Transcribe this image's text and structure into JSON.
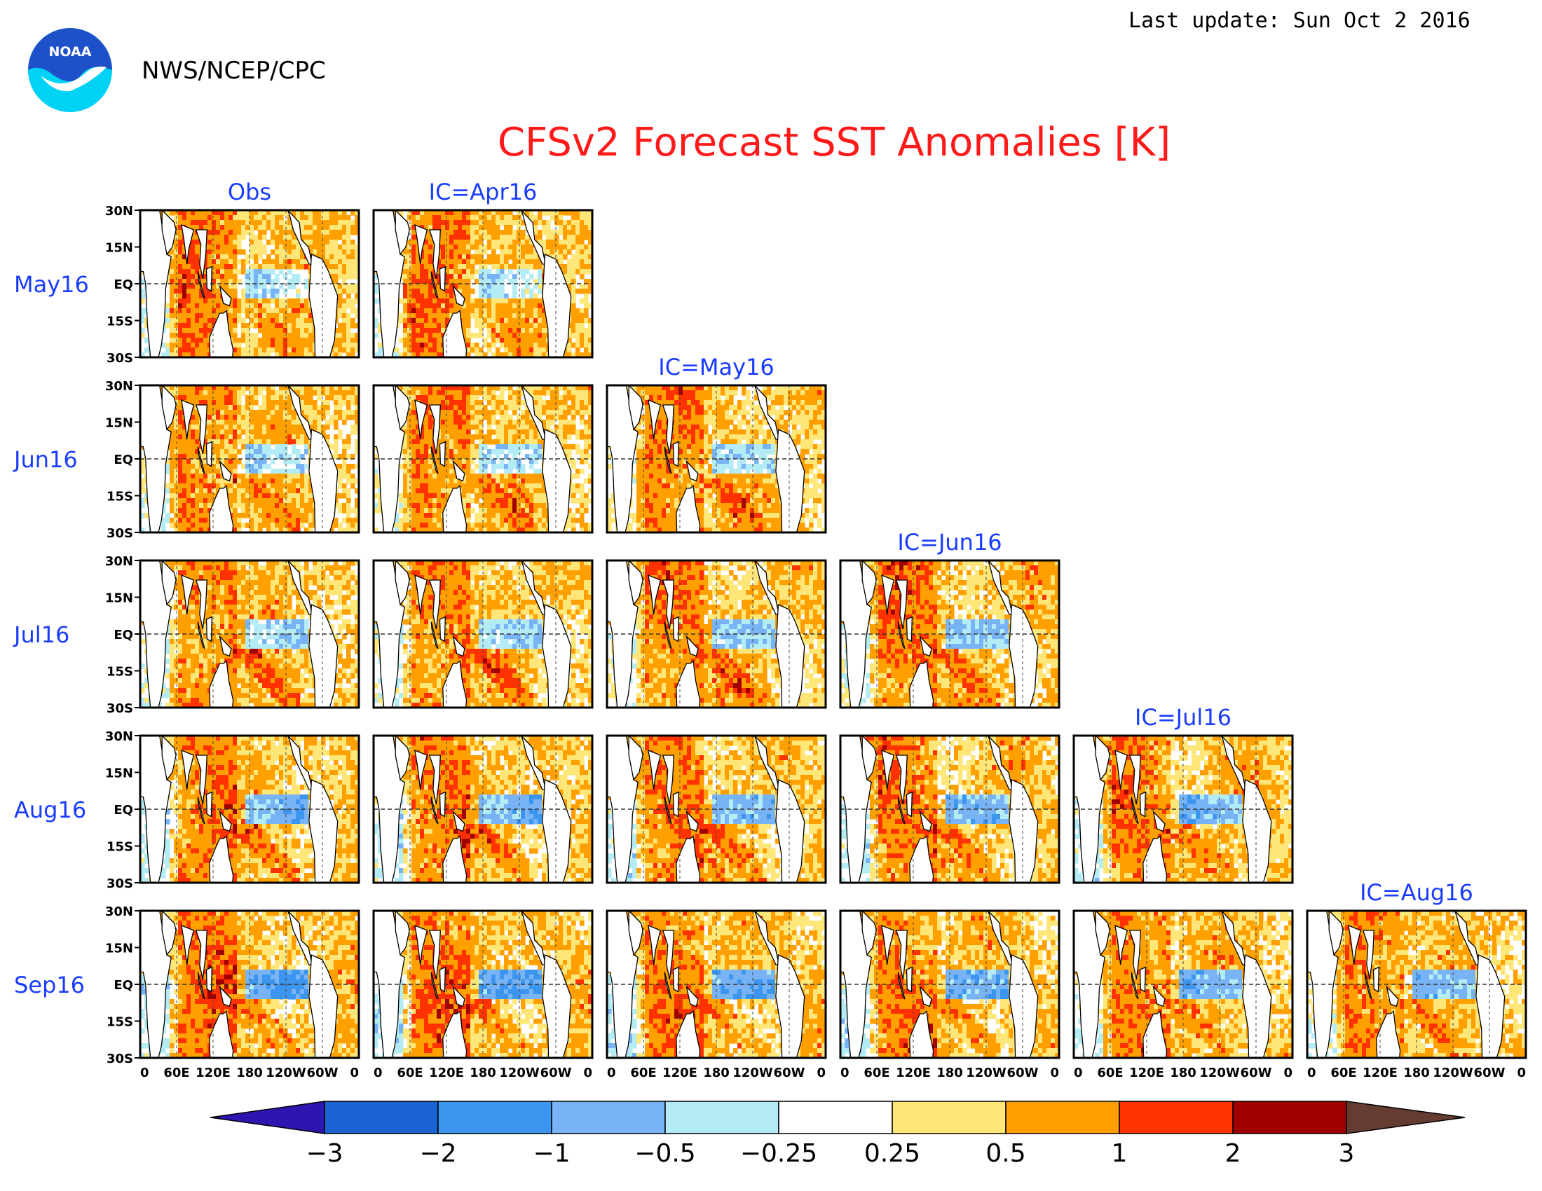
{
  "header": {
    "agency": "NWS/NCEP/CPC",
    "logo_text": "NOAA",
    "last_update": "Last update: Sun Oct 2 2016",
    "title": "CFSv2 Forecast SST Anomalies [K]"
  },
  "grid": {
    "column_headers": [
      "Obs",
      "IC=Apr16",
      "IC=May16",
      "IC=Jun16",
      "IC=Jul16",
      "IC=Aug16"
    ],
    "row_labels": [
      "May16",
      "Jun16",
      "Jul16",
      "Aug16",
      "Sep16"
    ],
    "panels_per_row": [
      2,
      3,
      4,
      5,
      6
    ],
    "lat_ticks": [
      "30N",
      "15N",
      "EQ",
      "15S",
      "30S"
    ],
    "lon_ticks": [
      "0",
      "60E",
      "120E",
      "180",
      "120W",
      "60W",
      "0"
    ]
  },
  "colorbar": {
    "labels": [
      "−3",
      "−2",
      "−1",
      "−0.5",
      "−0.25",
      "0.25",
      "0.5",
      "1",
      "2",
      "3"
    ],
    "colors": [
      "#2d16b0",
      "#1964d2",
      "#3c96f0",
      "#78b4f5",
      "#b4ecf5",
      "#ffffff",
      "#ffe678",
      "#ffa000",
      "#ff3200",
      "#a00000",
      "#643c32"
    ]
  },
  "colors": {
    "title": "#ff1a1a",
    "labels": "#1a3cff",
    "logo_blue": "#1e50c8",
    "logo_cyan": "#00d2f5"
  }
}
